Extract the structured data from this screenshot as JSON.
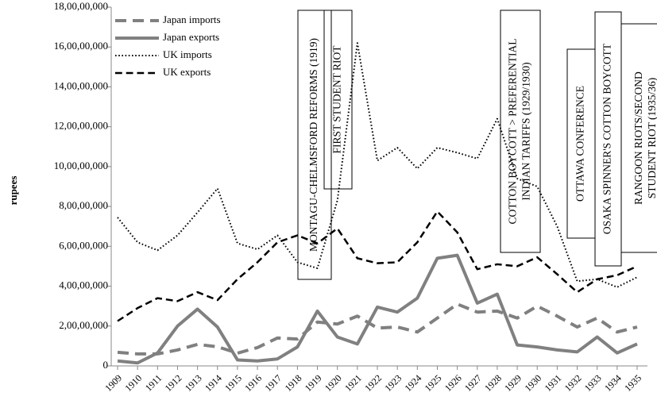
{
  "chart_data": {
    "type": "line",
    "y_label": "rupees",
    "categories": [
      "1909",
      "1910",
      "1911",
      "1912",
      "1913",
      "1914",
      "1915",
      "1916",
      "1917",
      "1918",
      "1919",
      "1920",
      "1921",
      "1922",
      "1923",
      "1924",
      "1925",
      "1926",
      "1927",
      "1928",
      "1929",
      "1930",
      "1931",
      "1932",
      "1933",
      "1934",
      "1935"
    ],
    "series": [
      {
        "name": "Japan imports",
        "color": "#808080",
        "linestyle": "dashed",
        "linewidth": 4,
        "values": [
          6800000,
          6000000,
          6000000,
          8000000,
          10800000,
          9600000,
          6400000,
          9200000,
          14000000,
          13500000,
          22000000,
          21000000,
          25000000,
          19000000,
          19500000,
          17000000,
          24000000,
          31000000,
          27000000,
          27500000,
          24000000,
          30000000,
          25000000,
          19500000,
          24000000,
          17000000,
          19500000
        ]
      },
      {
        "name": "Japan exports",
        "color": "#808080",
        "linestyle": "solid",
        "linewidth": 4,
        "values": [
          2500000,
          1500000,
          6500000,
          20000000,
          28500000,
          19500000,
          3000000,
          2500000,
          3500000,
          9500000,
          27500000,
          14500000,
          11000000,
          29500000,
          27000000,
          34000000,
          54000000,
          55500000,
          31500000,
          36000000,
          10500000,
          9500000,
          8000000,
          7000000,
          14500000,
          6500000,
          11000000
        ]
      },
      {
        "name": "UK imports",
        "color": "#000000",
        "linestyle": "dotted",
        "linewidth": 2,
        "values": [
          74500000,
          62000000,
          58000000,
          65500000,
          77000000,
          89000000,
          61500000,
          58500000,
          65500000,
          52000000,
          49000000,
          83000000,
          162000000,
          103000000,
          109500000,
          99000000,
          109500000,
          107000000,
          104000000,
          124000000,
          94000000,
          90000000,
          70000000,
          42500000,
          43500000,
          39500000,
          44500000
        ]
      },
      {
        "name": "UK exports",
        "color": "#000000",
        "linestyle": "dashed",
        "linewidth": 2.5,
        "values": [
          22500000,
          29000000,
          34000000,
          32500000,
          37000000,
          33000000,
          43500000,
          52000000,
          62000000,
          65500000,
          61500000,
          69000000,
          54000000,
          51500000,
          52000000,
          62000000,
          77500000,
          67000000,
          48500000,
          51000000,
          50000000,
          54500000,
          46000000,
          37000000,
          43500000,
          45500000,
          50000000
        ]
      }
    ],
    "ylim": [
      0,
      180000000
    ],
    "yticks": [
      0,
      {
        "value": 20000000,
        "label": "2,00,00,000"
      },
      {
        "value": 40000000,
        "label": "4,00,00,000"
      },
      {
        "value": 60000000,
        "label": "6,00,00,000"
      },
      {
        "value": 80000000,
        "label": "8,00,00,000"
      },
      {
        "value": 100000000,
        "label": "10,00,00,000"
      },
      {
        "value": 120000000,
        "label": "12,00,00,000"
      },
      {
        "value": 140000000,
        "label": "14,00,00,000"
      },
      {
        "value": 160000000,
        "label": "16,00,00,000"
      },
      {
        "value": 180000000,
        "label": "18,00,00,000"
      }
    ],
    "legend": "top-left",
    "annotations": [
      {
        "lines": [
          "MONTAGU-CHELMSFORD REFORMS (1919)"
        ]
      },
      {
        "lines": [
          "FIRST STUDENT RIOT"
        ]
      },
      {
        "lines": [
          "COTTON BOYCOTT > PREFERENTIAL",
          "INDIAN TARIFFS (1929/1930)"
        ]
      },
      {
        "lines": [
          "OTTAWA CONFERENCE"
        ]
      },
      {
        "lines": [
          "OSAKA SPINNER'S COTTON BOYCOTT"
        ]
      },
      {
        "lines": [
          "RANGOON RIOTS/SECOND",
          "STUDENT RIOT (1935/36)"
        ]
      }
    ]
  }
}
